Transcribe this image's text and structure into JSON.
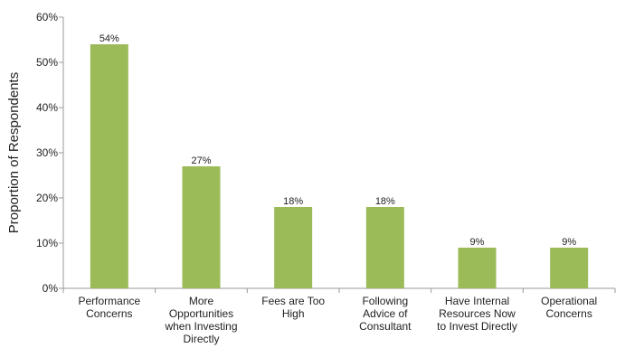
{
  "chart_data": {
    "type": "bar",
    "title": "",
    "xlabel": "",
    "ylabel": "Proportion of Respondents",
    "categories": [
      "Performance Concerns",
      "More Opportunities when Investing Directly",
      "Fees are Too High",
      "Following Advice of Consultant",
      "Have Internal Resources Now to Invest Directly",
      "Operational Concerns"
    ],
    "category_lines": [
      [
        "Performance",
        "Concerns"
      ],
      [
        "More",
        "Opportunities",
        "when Investing",
        "Directly"
      ],
      [
        "Fees are Too",
        "High"
      ],
      [
        "Following",
        "Advice of",
        "Consultant"
      ],
      [
        "Have Internal",
        "Resources Now",
        "to Invest Directly"
      ],
      [
        "Operational",
        "Concerns"
      ]
    ],
    "values": [
      54,
      27,
      18,
      18,
      9,
      9
    ],
    "data_labels": [
      "54%",
      "27%",
      "18%",
      "18%",
      "9%",
      "9%"
    ],
    "ylim": [
      0,
      60
    ],
    "yticks": [
      0,
      10,
      20,
      30,
      40,
      50,
      60
    ],
    "ytick_labels": [
      "0%",
      "10%",
      "20%",
      "30%",
      "40%",
      "50%",
      "60%"
    ],
    "grid": false,
    "legend": "none",
    "colors": {
      "bar": "#9BBB59",
      "axis": "#9a9a9a"
    }
  }
}
